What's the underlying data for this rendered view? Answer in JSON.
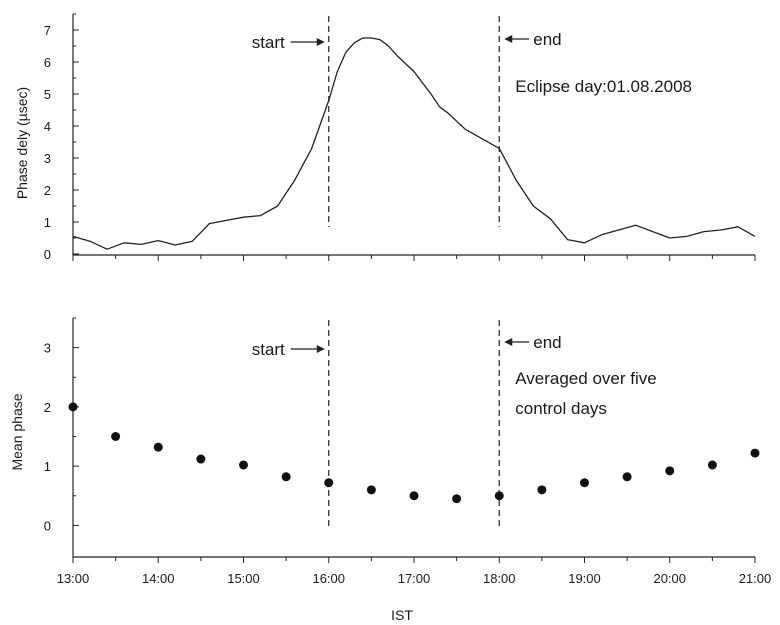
{
  "chart_data": [
    {
      "type": "line",
      "ylabel": "Phase dely (µsec)",
      "xlabel": "",
      "xlim": [
        13,
        21
      ],
      "ylim": [
        -0.5,
        7.5
      ],
      "yticks": [
        "0",
        "1",
        "2",
        "3",
        "4",
        "5",
        "6",
        "7"
      ],
      "show_x_tick_labels": false,
      "grid": false,
      "annotations": {
        "start": "start",
        "end": "end",
        "note_lines": [
          "Eclipse day:01.08.2008"
        ],
        "start_time": 16.0,
        "end_time": 18.0
      },
      "series": [
        {
          "name": "",
          "x": [
            13.0,
            13.2,
            13.4,
            13.6,
            13.8,
            14.0,
            14.2,
            14.4,
            14.6,
            14.8,
            15.0,
            15.2,
            15.4,
            15.6,
            15.8,
            16.0,
            16.1,
            16.2,
            16.3,
            16.4,
            16.5,
            16.6,
            16.7,
            16.8,
            17.0,
            17.2,
            17.3,
            17.4,
            17.6,
            17.8,
            18.0,
            18.2,
            18.4,
            18.6,
            18.8,
            19.0,
            19.2,
            19.4,
            19.6,
            19.8,
            20.0,
            20.2,
            20.4,
            20.6,
            20.8,
            21.0
          ],
          "y": [
            0.55,
            0.4,
            0.15,
            0.35,
            0.3,
            0.42,
            0.28,
            0.4,
            0.95,
            1.05,
            1.15,
            1.2,
            1.5,
            2.3,
            3.3,
            4.8,
            5.7,
            6.3,
            6.6,
            6.75,
            6.75,
            6.7,
            6.5,
            6.2,
            5.7,
            5.0,
            4.6,
            4.4,
            3.9,
            3.6,
            3.3,
            2.3,
            1.5,
            1.1,
            0.45,
            0.35,
            0.6,
            0.75,
            0.9,
            0.7,
            0.5,
            0.55,
            0.7,
            0.75,
            0.85,
            0.55
          ]
        }
      ]
    },
    {
      "type": "scatter",
      "ylabel": "Mean phase",
      "xlabel": "IST",
      "xlim": [
        13,
        21
      ],
      "ylim": [
        -0.5,
        3.5
      ],
      "yticks": [
        "0",
        "1",
        "2",
        "3"
      ],
      "categories": [
        "13:00",
        "14:00",
        "15:00",
        "16:00",
        "17:00",
        "18:00",
        "19:00",
        "20:00",
        "21:00"
      ],
      "grid": false,
      "annotations": {
        "start": "start",
        "end": "end",
        "note_lines": [
          "Averaged over five",
          "control days"
        ],
        "start_time": 16.0,
        "end_time": 18.0
      },
      "series": [
        {
          "name": "",
          "x": [
            13.0,
            13.5,
            14.0,
            14.5,
            15.0,
            15.5,
            16.0,
            16.5,
            17.0,
            17.5,
            18.0,
            18.5,
            19.0,
            19.5,
            20.0,
            20.5,
            21.0
          ],
          "y": [
            2.0,
            1.5,
            1.32,
            1.12,
            1.02,
            0.82,
            0.72,
            0.6,
            0.5,
            0.45,
            0.5,
            0.6,
            0.72,
            0.82,
            0.92,
            1.02,
            1.22
          ]
        }
      ]
    }
  ]
}
